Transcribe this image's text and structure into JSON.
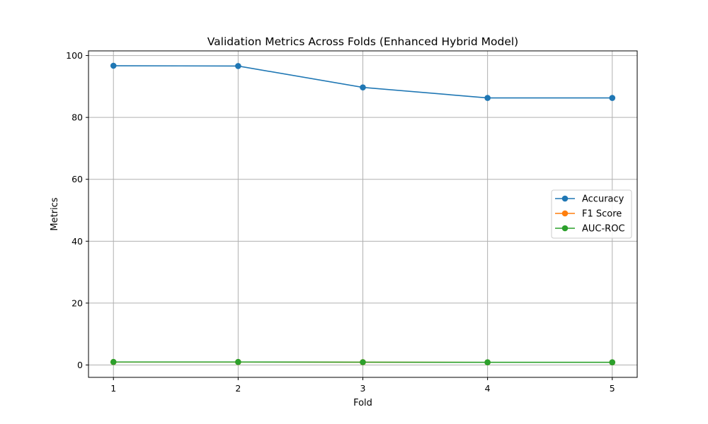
{
  "chart_data": {
    "type": "line",
    "title": "Validation Metrics Across Folds (Enhanced Hybrid Model)",
    "xlabel": "Fold",
    "ylabel": "Metrics",
    "x": [
      1,
      2,
      3,
      4,
      5
    ],
    "xticks": [
      "1",
      "2",
      "3",
      "4",
      "5"
    ],
    "yticks": [
      "0",
      "20",
      "40",
      "60",
      "80",
      "100"
    ],
    "ylim": [
      -4,
      101.5
    ],
    "xlim": [
      0.8,
      5.2
    ],
    "grid": true,
    "legend_position": "center-right",
    "series": [
      {
        "name": "Accuracy",
        "color": "#1f77b4",
        "values": [
          96.7,
          96.6,
          89.7,
          86.3,
          86.3
        ]
      },
      {
        "name": "F1 Score",
        "color": "#ff7f0e",
        "values": [
          0.96,
          0.96,
          0.89,
          0.85,
          0.85
        ]
      },
      {
        "name": "AUC-ROC",
        "color": "#2ca02c",
        "values": [
          0.97,
          0.97,
          0.91,
          0.86,
          0.86
        ]
      }
    ]
  }
}
